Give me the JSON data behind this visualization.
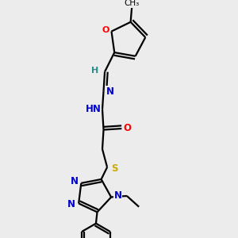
{
  "bg_color": "#ececec",
  "atom_colors": {
    "O": "#ff0000",
    "N": "#0000cd",
    "S": "#ccaa00",
    "H": "#2e8b8b",
    "C": "#000000"
  }
}
